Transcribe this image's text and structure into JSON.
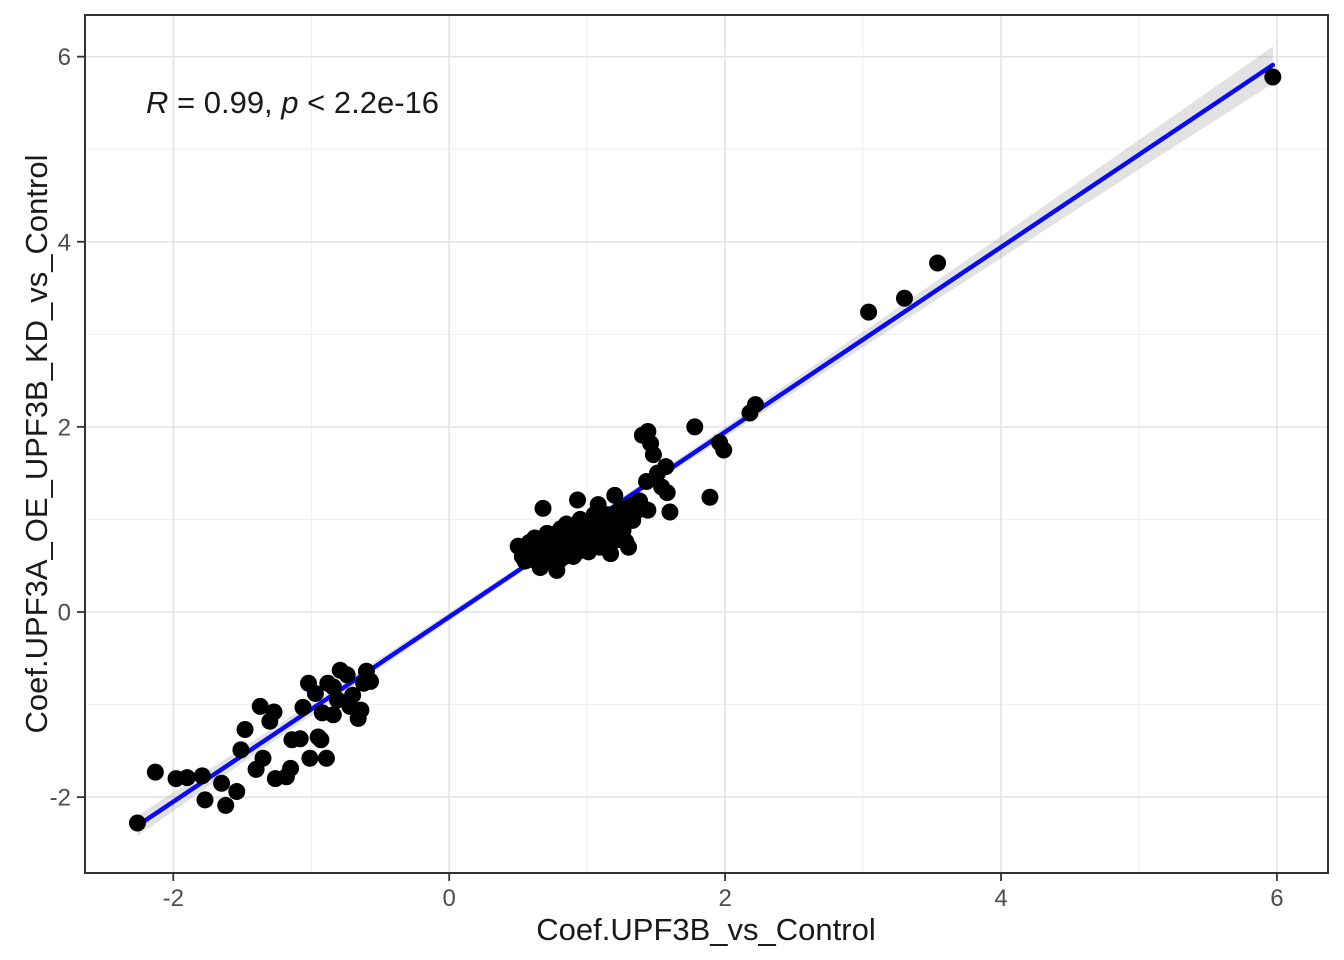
{
  "figure": {
    "background": "#ffffff"
  },
  "chart_data": {
    "type": "scatter",
    "title": "",
    "xlabel": "Coef.UPF3B_vs_Control",
    "ylabel": "Coef.UPF3A_OE_UPF3B_KD_vs_Control",
    "annotation": {
      "full_text": "R = 0.99, p < 2.2e-16",
      "r_value": "0.99",
      "p_value": "2.2e-16",
      "parts": [
        {
          "text": "R",
          "italic": true
        },
        {
          "text": " = 0.99, ",
          "italic": false
        },
        {
          "text": "p",
          "italic": true
        },
        {
          "text": " < 2.2e-16",
          "italic": false
        }
      ],
      "x": -2.19,
      "y": 5.44
    },
    "x_ticks": [
      -2,
      0,
      2,
      4,
      6
    ],
    "y_ticks": [
      -2,
      0,
      2,
      4,
      6
    ],
    "x_minor_gridlines": [
      -1,
      1,
      3,
      5
    ],
    "y_minor_gridlines": [
      -1,
      1,
      3,
      5
    ],
    "xlim": [
      -2.64,
      6.37
    ],
    "ylim": [
      -2.82,
      6.45
    ],
    "grid": true,
    "legend": "none",
    "regression_line": {
      "x1": -2.26,
      "y1": -2.31,
      "x2": 5.97,
      "y2": 5.91
    },
    "confidence_band": {
      "x": [
        -2.26,
        -1.5,
        -0.5,
        0.5,
        0.9,
        1.5,
        2.5,
        3.5,
        4.5,
        5.3,
        5.97
      ],
      "half_width": [
        0.11,
        0.08,
        0.055,
        0.04,
        0.038,
        0.045,
        0.07,
        0.1,
        0.14,
        0.17,
        0.2
      ]
    },
    "points": [
      [
        -2.26,
        -2.28
      ],
      [
        -2.13,
        -1.73
      ],
      [
        -1.98,
        -1.8
      ],
      [
        -1.9,
        -1.79
      ],
      [
        -1.79,
        -1.77
      ],
      [
        -1.77,
        -2.03
      ],
      [
        -1.65,
        -1.85
      ],
      [
        -1.62,
        -2.09
      ],
      [
        -1.54,
        -1.94
      ],
      [
        -1.51,
        -1.49
      ],
      [
        -1.48,
        -1.27
      ],
      [
        -1.4,
        -1.7
      ],
      [
        -1.37,
        -1.02
      ],
      [
        -1.35,
        -1.58
      ],
      [
        -1.3,
        -1.18
      ],
      [
        -1.27,
        -1.08
      ],
      [
        -1.26,
        -1.8
      ],
      [
        -1.18,
        -1.78
      ],
      [
        -1.15,
        -1.69
      ],
      [
        -1.14,
        -1.38
      ],
      [
        -1.08,
        -1.37
      ],
      [
        -1.06,
        -1.03
      ],
      [
        -1.02,
        -0.77
      ],
      [
        -1.01,
        -1.58
      ],
      [
        -0.97,
        -0.88
      ],
      [
        -0.95,
        -1.35
      ],
      [
        -0.93,
        -1.38
      ],
      [
        -0.92,
        -1.09
      ],
      [
        -0.89,
        -1.58
      ],
      [
        -0.88,
        -0.77
      ],
      [
        -0.84,
        -1.11
      ],
      [
        -0.84,
        -0.81
      ],
      [
        -0.81,
        -0.95
      ],
      [
        -0.79,
        -0.63
      ],
      [
        -0.74,
        -0.68
      ],
      [
        -0.72,
        -1.02
      ],
      [
        -0.7,
        -0.9
      ],
      [
        -0.66,
        -1.15
      ],
      [
        -0.64,
        -1.06
      ],
      [
        -0.62,
        -0.77
      ],
      [
        -0.6,
        -0.64
      ],
      [
        -0.57,
        -0.75
      ],
      [
        0.5,
        0.71
      ],
      [
        0.53,
        0.6
      ],
      [
        0.55,
        0.55
      ],
      [
        0.55,
        0.68
      ],
      [
        0.57,
        0.62
      ],
      [
        0.58,
        0.75
      ],
      [
        0.6,
        0.58
      ],
      [
        0.6,
        0.7
      ],
      [
        0.62,
        0.64
      ],
      [
        0.62,
        0.8
      ],
      [
        0.63,
        0.55
      ],
      [
        0.65,
        0.7
      ],
      [
        0.66,
        0.48
      ],
      [
        0.66,
        0.6
      ],
      [
        0.67,
        0.78
      ],
      [
        0.68,
        0.65
      ],
      [
        0.7,
        0.55
      ],
      [
        0.7,
        0.72
      ],
      [
        0.71,
        0.85
      ],
      [
        0.72,
        0.62
      ],
      [
        0.73,
        0.75
      ],
      [
        0.74,
        0.68
      ],
      [
        0.75,
        0.58
      ],
      [
        0.75,
        0.8
      ],
      [
        0.77,
        0.7
      ],
      [
        0.78,
        0.45
      ],
      [
        0.78,
        0.62
      ],
      [
        0.78,
        0.85
      ],
      [
        0.8,
        0.56
      ],
      [
        0.8,
        0.75
      ],
      [
        0.81,
        0.9
      ],
      [
        0.82,
        0.66
      ],
      [
        0.83,
        0.78
      ],
      [
        0.84,
        0.6
      ],
      [
        0.85,
        0.72
      ],
      [
        0.85,
        0.95
      ],
      [
        0.87,
        0.8
      ],
      [
        0.88,
        0.68
      ],
      [
        0.88,
        0.92
      ],
      [
        0.9,
        0.6
      ],
      [
        0.9,
        0.74
      ],
      [
        0.91,
        0.86
      ],
      [
        0.92,
        0.78
      ],
      [
        0.93,
        0.65
      ],
      [
        0.94,
        0.9
      ],
      [
        0.95,
        0.72
      ],
      [
        0.95,
        1.0
      ],
      [
        0.97,
        0.82
      ],
      [
        0.98,
        0.7
      ],
      [
        0.98,
        0.94
      ],
      [
        1.0,
        0.78
      ],
      [
        1.0,
        0.88
      ],
      [
        1.01,
        0.65
      ],
      [
        1.02,
        0.98
      ],
      [
        1.03,
        0.84
      ],
      [
        1.04,
        0.74
      ],
      [
        1.05,
        0.92
      ],
      [
        1.05,
        1.05
      ],
      [
        1.07,
        0.8
      ],
      [
        1.08,
        0.95
      ],
      [
        1.09,
        0.7
      ],
      [
        1.1,
        0.88
      ],
      [
        1.1,
        1.02
      ],
      [
        1.12,
        0.78
      ],
      [
        1.13,
        0.92
      ],
      [
        1.14,
        0.85
      ],
      [
        1.15,
        0.73
      ],
      [
        1.15,
        1.05
      ],
      [
        1.17,
        0.63
      ],
      [
        1.17,
        0.95
      ],
      [
        1.18,
        0.85
      ],
      [
        1.2,
        0.9
      ],
      [
        1.2,
        1.0
      ],
      [
        1.22,
        0.78
      ],
      [
        1.22,
        1.08
      ],
      [
        1.23,
        0.95
      ],
      [
        1.25,
        1.05
      ],
      [
        1.26,
        0.88
      ],
      [
        1.28,
        1.12
      ],
      [
        1.3,
        1.0
      ],
      [
        1.32,
        1.15
      ],
      [
        1.35,
        1.08
      ],
      [
        0.68,
        1.12
      ],
      [
        0.93,
        1.21
      ],
      [
        1.08,
        1.16
      ],
      [
        1.2,
        1.26
      ],
      [
        1.33,
        0.99
      ],
      [
        1.28,
        0.76
      ],
      [
        1.3,
        0.7
      ],
      [
        1.38,
        1.2
      ],
      [
        1.4,
        1.91
      ],
      [
        1.44,
        1.95
      ],
      [
        1.46,
        1.82
      ],
      [
        1.48,
        1.7
      ],
      [
        1.43,
        1.41
      ],
      [
        1.51,
        1.5
      ],
      [
        1.54,
        1.35
      ],
      [
        1.57,
        1.57
      ],
      [
        1.58,
        1.29
      ],
      [
        1.6,
        1.08
      ],
      [
        1.44,
        1.1
      ],
      [
        1.78,
        2.0
      ],
      [
        1.89,
        1.24
      ],
      [
        1.96,
        1.83
      ],
      [
        1.99,
        1.75
      ],
      [
        2.18,
        2.15
      ],
      [
        2.22,
        2.24
      ],
      [
        3.04,
        3.24
      ],
      [
        3.3,
        3.39
      ],
      [
        3.54,
        3.77
      ],
      [
        5.97,
        5.78
      ]
    ]
  },
  "style": {
    "point_color": "#000000",
    "line_color": "#0b0be8",
    "band_color": "rgba(150,150,150,0.28)",
    "major_grid_color": "#e3e3e3",
    "minor_grid_color": "#f0f0f0",
    "panel_border_color": "#333333",
    "tick_mark_color": "#333333",
    "tick_label_color": "#4d4d4d",
    "axis_title_color": "#1a1a1a",
    "annotation_color": "#1a1a1a",
    "panel_background": "#ffffff"
  }
}
